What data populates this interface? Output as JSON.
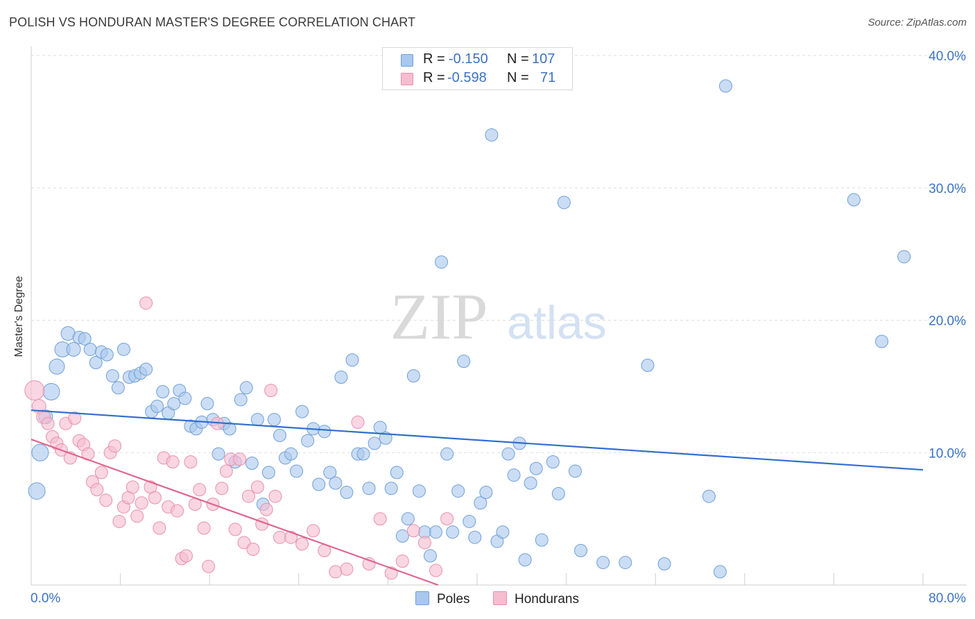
{
  "title": "POLISH VS HONDURAN MASTER'S DEGREE CORRELATION CHART",
  "source": "Source: ZipAtlas.com",
  "watermark": {
    "zip": "ZIP",
    "atlas": "atlas"
  },
  "colors": {
    "poles_fill": "#a9c8ee",
    "poles_stroke": "#6f9fd8",
    "poles_line": "#2f6fcf",
    "hondurans_fill": "#f6bdd0",
    "hondurans_stroke": "#e98fae",
    "hondurans_line": "#e0648f",
    "tick_label": "#3b73c4",
    "grid": "#dddddd"
  },
  "legend_stats": [
    {
      "r_label": "R =",
      "r_value": "-0.150",
      "n_label": "N =",
      "n_value": "107"
    },
    {
      "r_label": "R =",
      "r_value": "-0.598",
      "n_label": "N =",
      "n_value": "71"
    }
  ],
  "bottom_legend": [
    "Poles",
    "Hondurans"
  ],
  "chart_data": {
    "type": "scatter",
    "title": "POLISH VS HONDURAN MASTER'S DEGREE CORRELATION CHART",
    "xlabel": "",
    "ylabel": "Master's Degree",
    "xlim": [
      0,
      80
    ],
    "ylim": [
      0,
      40
    ],
    "x_tick_labels": [
      "0.0%",
      "80.0%"
    ],
    "y_tick_labels": [
      "10.0%",
      "20.0%",
      "30.0%",
      "40.0%"
    ],
    "y_ticks": [
      10,
      20,
      30,
      40
    ],
    "grid": "horizontal dashed",
    "legend_position": "top-center",
    "series": [
      {
        "name": "Poles",
        "r": -0.15,
        "n": 107,
        "trend": {
          "x": [
            0,
            80
          ],
          "y": [
            13.2,
            8.7
          ]
        },
        "points": [
          [
            0.5,
            7.1,
            12
          ],
          [
            0.8,
            10.0,
            12
          ],
          [
            1.8,
            14.6,
            12
          ],
          [
            1.3,
            12.7,
            10
          ],
          [
            2.3,
            16.5,
            11
          ],
          [
            2.8,
            17.8,
            11
          ],
          [
            3.3,
            19.0,
            10
          ],
          [
            3.8,
            17.8,
            10
          ],
          [
            4.3,
            18.7,
            9
          ],
          [
            4.8,
            18.6,
            9
          ],
          [
            5.3,
            17.8,
            9
          ],
          [
            5.8,
            16.8,
            9
          ],
          [
            6.3,
            17.6,
            9
          ],
          [
            6.8,
            17.4,
            9
          ],
          [
            7.3,
            15.8,
            9
          ],
          [
            7.8,
            14.9,
            9
          ],
          [
            8.3,
            17.8,
            9
          ],
          [
            8.8,
            15.7,
            9
          ],
          [
            9.3,
            15.8,
            9
          ],
          [
            9.8,
            16.0,
            9
          ],
          [
            10.3,
            16.3,
            9
          ],
          [
            10.8,
            13.1,
            9
          ],
          [
            11.3,
            13.5,
            9
          ],
          [
            11.8,
            14.6,
            9
          ],
          [
            12.3,
            13.0,
            9
          ],
          [
            12.8,
            13.7,
            9
          ],
          [
            13.3,
            14.7,
            9
          ],
          [
            13.8,
            14.1,
            9
          ],
          [
            14.3,
            12.0,
            9
          ],
          [
            14.8,
            11.8,
            9
          ],
          [
            15.3,
            12.3,
            9
          ],
          [
            15.8,
            13.7,
            9
          ],
          [
            16.3,
            12.5,
            9
          ],
          [
            16.8,
            9.9,
            9
          ],
          [
            17.3,
            12.2,
            9
          ],
          [
            17.8,
            11.8,
            9
          ],
          [
            18.3,
            9.3,
            9
          ],
          [
            18.8,
            14.0,
            9
          ],
          [
            19.3,
            14.9,
            9
          ],
          [
            19.8,
            9.2,
            9
          ],
          [
            20.3,
            12.5,
            9
          ],
          [
            20.8,
            6.1,
            9
          ],
          [
            21.3,
            8.5,
            9
          ],
          [
            21.8,
            12.5,
            9
          ],
          [
            22.3,
            11.3,
            9
          ],
          [
            22.8,
            9.6,
            9
          ],
          [
            23.3,
            9.9,
            9
          ],
          [
            23.8,
            8.6,
            9
          ],
          [
            24.3,
            13.1,
            9
          ],
          [
            24.8,
            10.9,
            9
          ],
          [
            25.3,
            11.8,
            9
          ],
          [
            25.8,
            7.6,
            9
          ],
          [
            26.3,
            11.6,
            9
          ],
          [
            26.8,
            8.5,
            9
          ],
          [
            27.3,
            7.7,
            9
          ],
          [
            27.8,
            15.7,
            9
          ],
          [
            28.3,
            7.0,
            9
          ],
          [
            28.8,
            17.0,
            9
          ],
          [
            29.3,
            9.9,
            9
          ],
          [
            29.8,
            9.9,
            9
          ],
          [
            30.3,
            7.3,
            9
          ],
          [
            30.8,
            10.7,
            9
          ],
          [
            31.3,
            11.9,
            9
          ],
          [
            31.8,
            11.1,
            9
          ],
          [
            32.3,
            7.3,
            9
          ],
          [
            32.8,
            8.5,
            9
          ],
          [
            33.3,
            3.7,
            9
          ],
          [
            33.8,
            5.0,
            9
          ],
          [
            34.3,
            15.8,
            9
          ],
          [
            34.8,
            7.1,
            9
          ],
          [
            35.3,
            4.0,
            9
          ],
          [
            35.8,
            2.2,
            9
          ],
          [
            36.3,
            4.0,
            9
          ],
          [
            36.8,
            24.4,
            9
          ],
          [
            37.3,
            9.9,
            9
          ],
          [
            37.8,
            4.0,
            9
          ],
          [
            38.3,
            7.1,
            9
          ],
          [
            38.8,
            16.9,
            9
          ],
          [
            39.3,
            4.8,
            9
          ],
          [
            39.8,
            3.6,
            9
          ],
          [
            40.3,
            6.2,
            9
          ],
          [
            40.8,
            7.0,
            9
          ],
          [
            41.3,
            34.0,
            9
          ],
          [
            41.8,
            3.3,
            9
          ],
          [
            42.3,
            4.0,
            9
          ],
          [
            42.8,
            9.9,
            9
          ],
          [
            43.3,
            8.3,
            9
          ],
          [
            43.8,
            10.7,
            9
          ],
          [
            44.3,
            1.9,
            9
          ],
          [
            44.8,
            7.7,
            9
          ],
          [
            45.3,
            8.8,
            9
          ],
          [
            45.8,
            3.4,
            9
          ],
          [
            46.8,
            9.3,
            9
          ],
          [
            47.3,
            6.9,
            9
          ],
          [
            47.8,
            28.9,
            9
          ],
          [
            48.8,
            8.6,
            9
          ],
          [
            49.3,
            2.6,
            9
          ],
          [
            51.3,
            1.7,
            9
          ],
          [
            53.3,
            1.7,
            9
          ],
          [
            55.3,
            16.6,
            9
          ],
          [
            56.8,
            1.6,
            9
          ],
          [
            60.8,
            6.7,
            9
          ],
          [
            61.8,
            1.0,
            9
          ],
          [
            62.3,
            37.7,
            9
          ],
          [
            73.8,
            29.1,
            9
          ],
          [
            76.3,
            18.4,
            9
          ],
          [
            78.3,
            24.8,
            9
          ]
        ]
      },
      {
        "name": "Hondurans",
        "r": -0.598,
        "n": 71,
        "trend": {
          "x": [
            0,
            36.5
          ],
          "y": [
            11.0,
            0.0
          ]
        },
        "points": [
          [
            0.3,
            14.7,
            14
          ],
          [
            0.7,
            13.5,
            10
          ],
          [
            1.1,
            12.7,
            10
          ],
          [
            1.5,
            12.2,
            9
          ],
          [
            1.9,
            11.2,
            9
          ],
          [
            2.3,
            10.7,
            9
          ],
          [
            2.7,
            10.2,
            9
          ],
          [
            3.1,
            12.2,
            9
          ],
          [
            3.5,
            9.6,
            9
          ],
          [
            3.9,
            12.6,
            9
          ],
          [
            4.3,
            10.9,
            9
          ],
          [
            4.7,
            10.6,
            9
          ],
          [
            5.1,
            9.9,
            9
          ],
          [
            5.5,
            7.8,
            9
          ],
          [
            5.9,
            7.2,
            9
          ],
          [
            6.3,
            8.5,
            9
          ],
          [
            6.7,
            6.4,
            9
          ],
          [
            7.1,
            10.0,
            9
          ],
          [
            7.5,
            10.5,
            9
          ],
          [
            7.9,
            4.8,
            9
          ],
          [
            8.3,
            5.9,
            9
          ],
          [
            8.7,
            6.6,
            9
          ],
          [
            9.1,
            7.4,
            9
          ],
          [
            9.5,
            5.2,
            9
          ],
          [
            9.9,
            6.2,
            9
          ],
          [
            10.3,
            21.3,
            9
          ],
          [
            10.7,
            7.4,
            9
          ],
          [
            11.1,
            6.6,
            9
          ],
          [
            11.5,
            4.3,
            9
          ],
          [
            11.9,
            9.6,
            9
          ],
          [
            12.3,
            5.9,
            9
          ],
          [
            12.7,
            9.3,
            9
          ],
          [
            13.1,
            5.6,
            9
          ],
          [
            13.5,
            2.0,
            9
          ],
          [
            13.9,
            2.2,
            9
          ],
          [
            14.3,
            9.3,
            9
          ],
          [
            14.7,
            6.1,
            9
          ],
          [
            15.1,
            7.2,
            9
          ],
          [
            15.5,
            4.3,
            9
          ],
          [
            15.9,
            1.4,
            9
          ],
          [
            16.3,
            6.1,
            9
          ],
          [
            16.7,
            12.2,
            9
          ],
          [
            17.1,
            7.3,
            9
          ],
          [
            17.5,
            8.6,
            9
          ],
          [
            17.9,
            9.5,
            9
          ],
          [
            18.3,
            4.2,
            9
          ],
          [
            18.7,
            9.5,
            9
          ],
          [
            19.1,
            3.2,
            9
          ],
          [
            19.5,
            6.7,
            9
          ],
          [
            19.9,
            2.7,
            9
          ],
          [
            20.3,
            7.4,
            9
          ],
          [
            20.7,
            4.6,
            9
          ],
          [
            21.1,
            5.7,
            9
          ],
          [
            21.5,
            14.7,
            9
          ],
          [
            21.9,
            6.7,
            9
          ],
          [
            22.3,
            3.6,
            9
          ],
          [
            23.3,
            3.6,
            9
          ],
          [
            24.3,
            3.1,
            9
          ],
          [
            25.3,
            4.1,
            9
          ],
          [
            26.3,
            2.6,
            9
          ],
          [
            27.3,
            1.0,
            9
          ],
          [
            28.3,
            1.2,
            9
          ],
          [
            29.3,
            12.3,
            9
          ],
          [
            30.3,
            1.6,
            9
          ],
          [
            31.3,
            5.0,
            9
          ],
          [
            32.3,
            0.9,
            9
          ],
          [
            33.3,
            1.8,
            9
          ],
          [
            34.3,
            4.1,
            9
          ],
          [
            35.3,
            3.2,
            9
          ],
          [
            36.3,
            1.1,
            9
          ],
          [
            37.3,
            5.0,
            9
          ]
        ]
      }
    ]
  }
}
